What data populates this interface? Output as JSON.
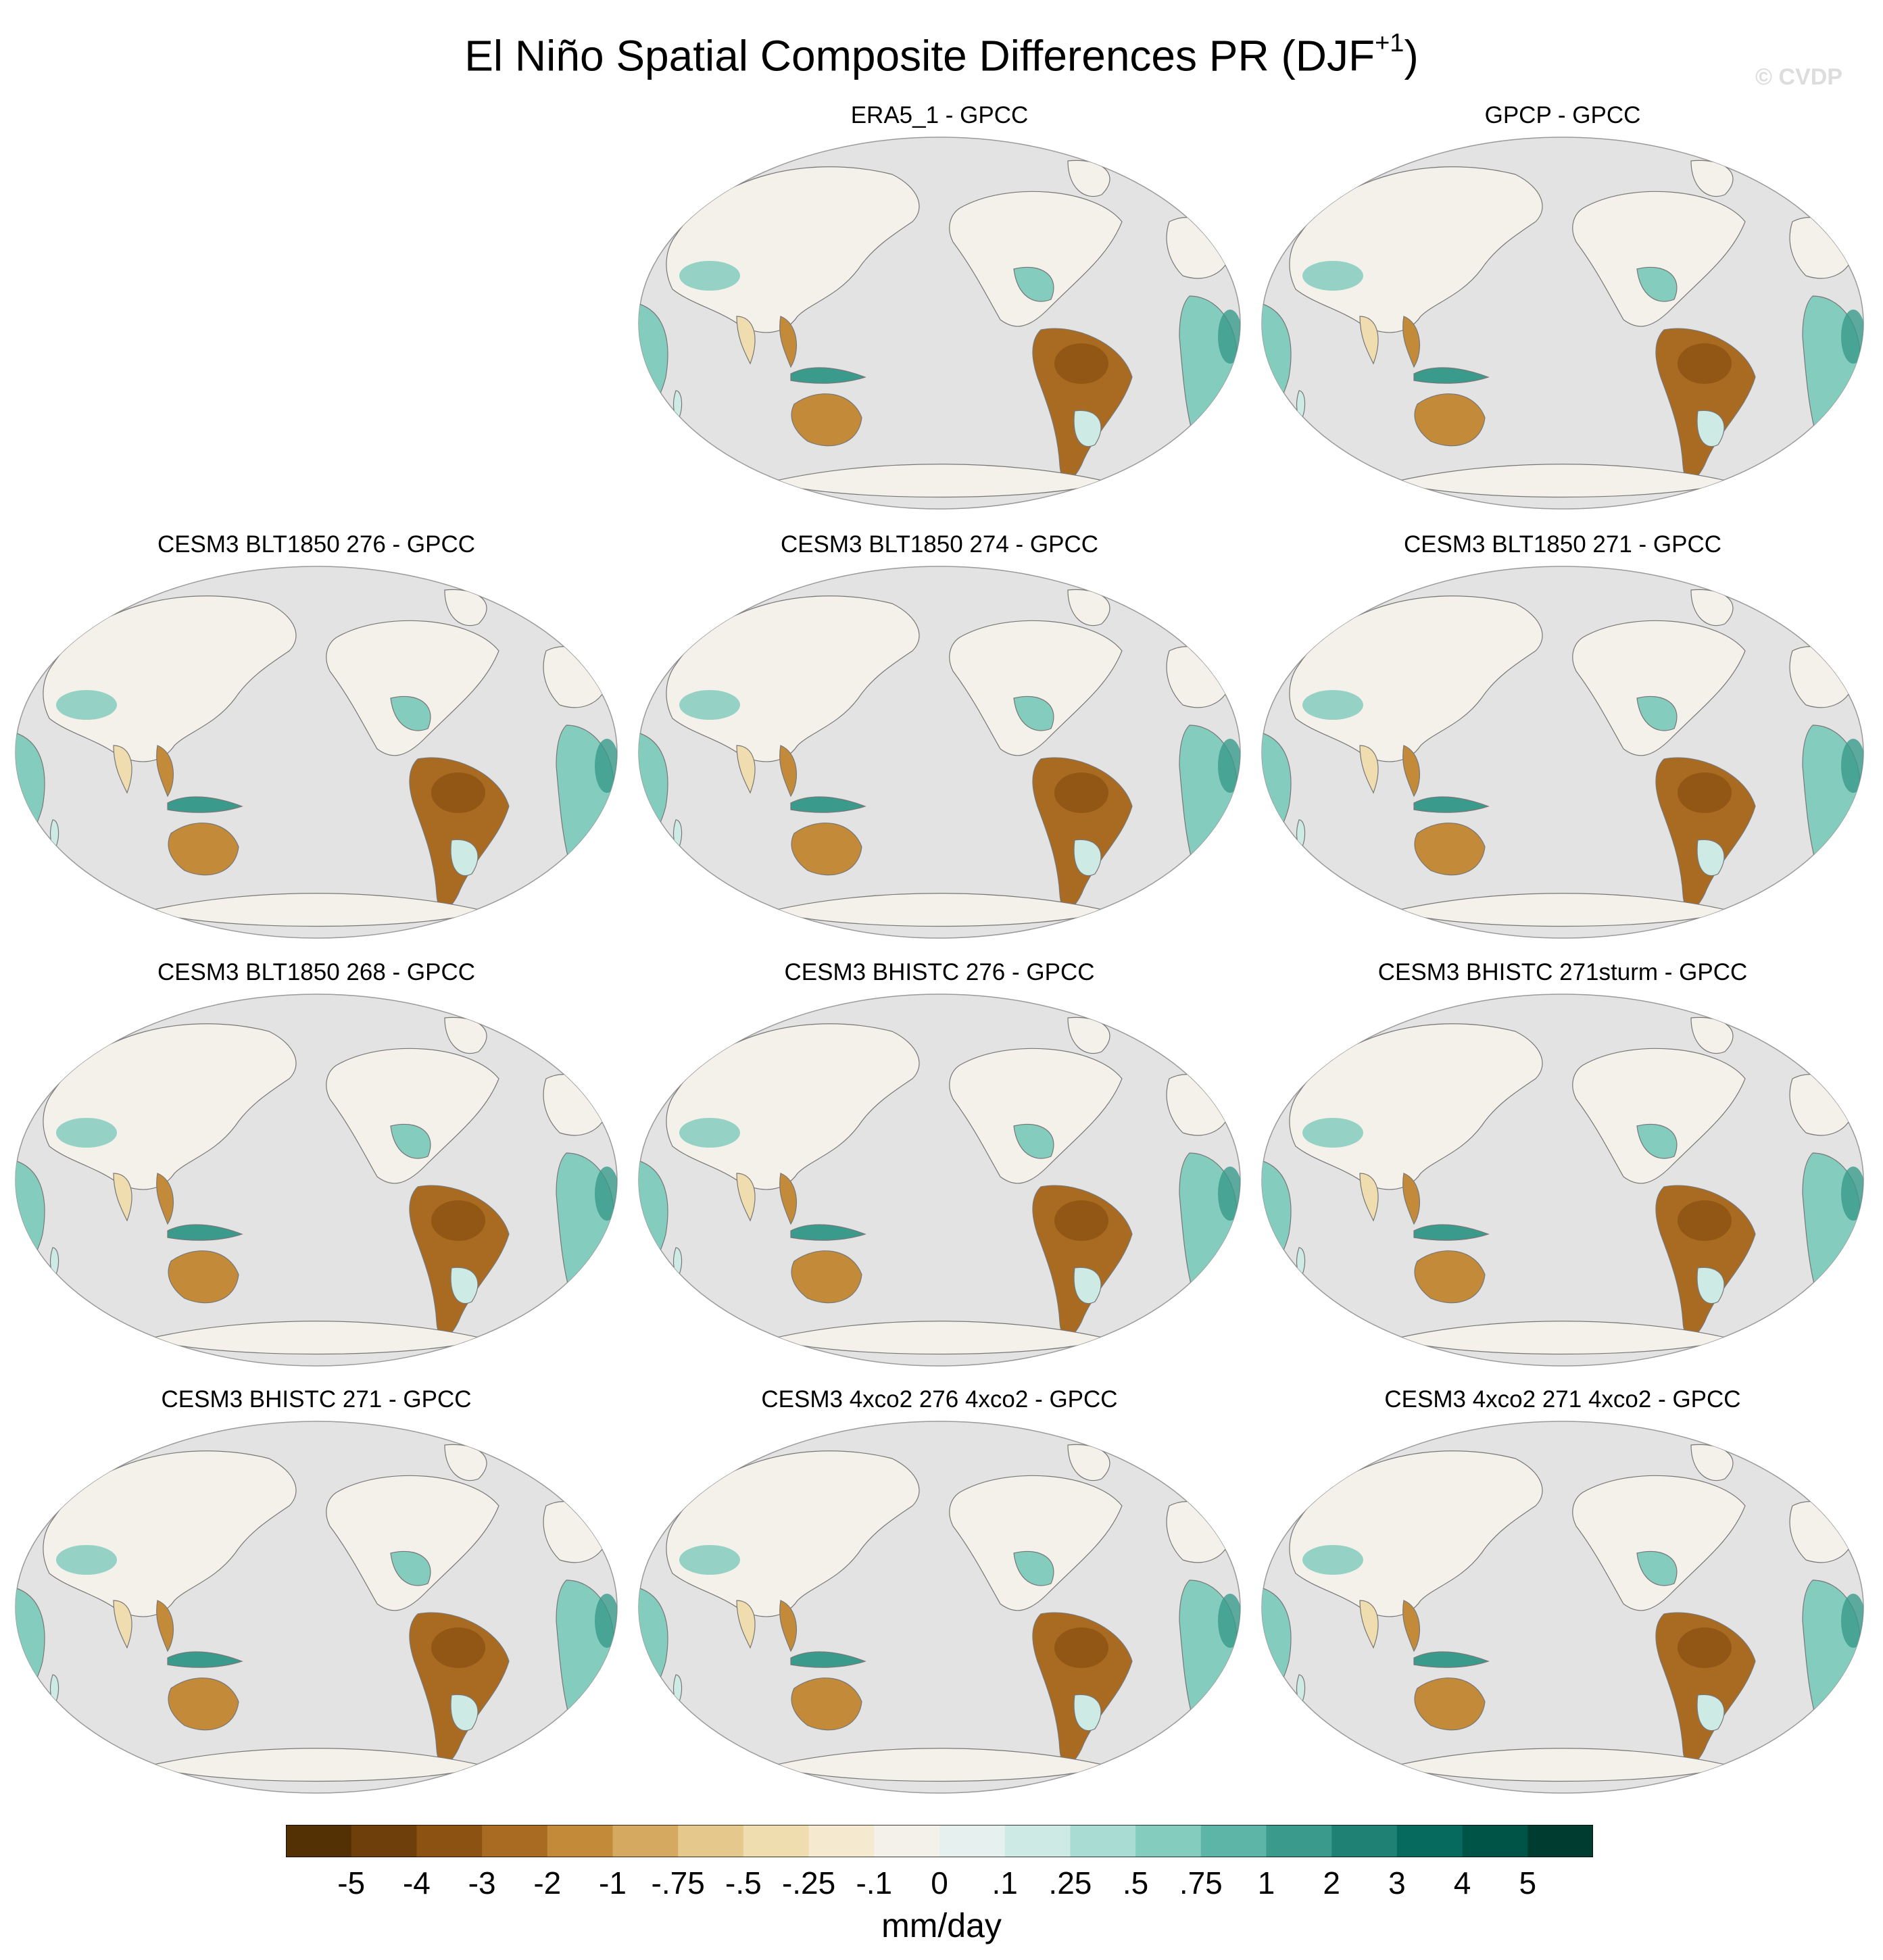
{
  "figure": {
    "title_main": "El Niño Spatial Composite Differences PR (DJF",
    "title_sup": "+1",
    "title_end": ")",
    "watermark": "© CVDP"
  },
  "panels": [
    {
      "title": "ERA5_1 - GPCC"
    },
    {
      "title": "GPCP - GPCC"
    },
    {
      "title": "CESM3 BLT1850 276 - GPCC"
    },
    {
      "title": "CESM3 BLT1850 274 - GPCC"
    },
    {
      "title": "CESM3 BLT1850 271 - GPCC"
    },
    {
      "title": "CESM3 BLT1850 268 - GPCC"
    },
    {
      "title": "CESM3 BHISTC 276 - GPCC"
    },
    {
      "title": "CESM3 BHISTC 271sturm - GPCC"
    },
    {
      "title": "CESM3 BHISTC 271 - GPCC"
    },
    {
      "title": "CESM3 4xco2 276 4xco2 - GPCC"
    },
    {
      "title": "CESM3 4xco2 271 4xco2 - GPCC"
    }
  ],
  "colorbar": {
    "colors": [
      "#543005",
      "#6f3f0b",
      "#8c5211",
      "#a96b22",
      "#c38a3a",
      "#d5aa60",
      "#e5c98c",
      "#efdcaf",
      "#f5ead0",
      "#f4f1ea",
      "#e6f1ef",
      "#cdeae5",
      "#a9ddd4",
      "#84ccbe",
      "#5cb5a6",
      "#3a9a8b",
      "#1f8074",
      "#076a5f",
      "#005447",
      "#003c30"
    ],
    "labels": [
      "-5",
      "-4",
      "-3",
      "-2",
      "-1",
      "-.75",
      "-.5",
      "-.25",
      "-.1",
      "0",
      ".1",
      ".25",
      ".5",
      ".75",
      "1",
      "2",
      "3",
      "4",
      "5"
    ],
    "unit": "mm/day"
  }
}
